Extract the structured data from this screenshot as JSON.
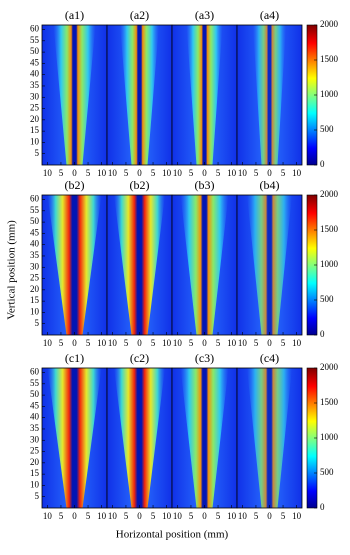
{
  "chart_data": {
    "type": "heatmap",
    "ylabel": "Vertical position (mm)",
    "xlabel": "Horizontal position (mm)",
    "rows": [
      {
        "panels": [
          "(a1)",
          "(a2)",
          "(a3)",
          "(a4)"
        ]
      },
      {
        "panels": [
          "(b2)",
          "(b2)",
          "(b3)",
          "(b4)"
        ]
      },
      {
        "panels": [
          "(c1)",
          "(c2)",
          "(c3)",
          "(c4)"
        ]
      }
    ],
    "xlim": [
      -12,
      12
    ],
    "xticks": [
      {
        "value": -10,
        "label": "10"
      },
      {
        "value": -5,
        "label": "5"
      },
      0,
      5,
      10
    ],
    "ylim": [
      0,
      62
    ],
    "yticks": [
      5,
      10,
      15,
      20,
      25,
      30,
      35,
      40,
      45,
      50,
      55,
      60
    ],
    "colorbar": {
      "lim": [
        0,
        2000
      ],
      "ticks": [
        0,
        500,
        1000,
        1500,
        2000
      ]
    }
  }
}
